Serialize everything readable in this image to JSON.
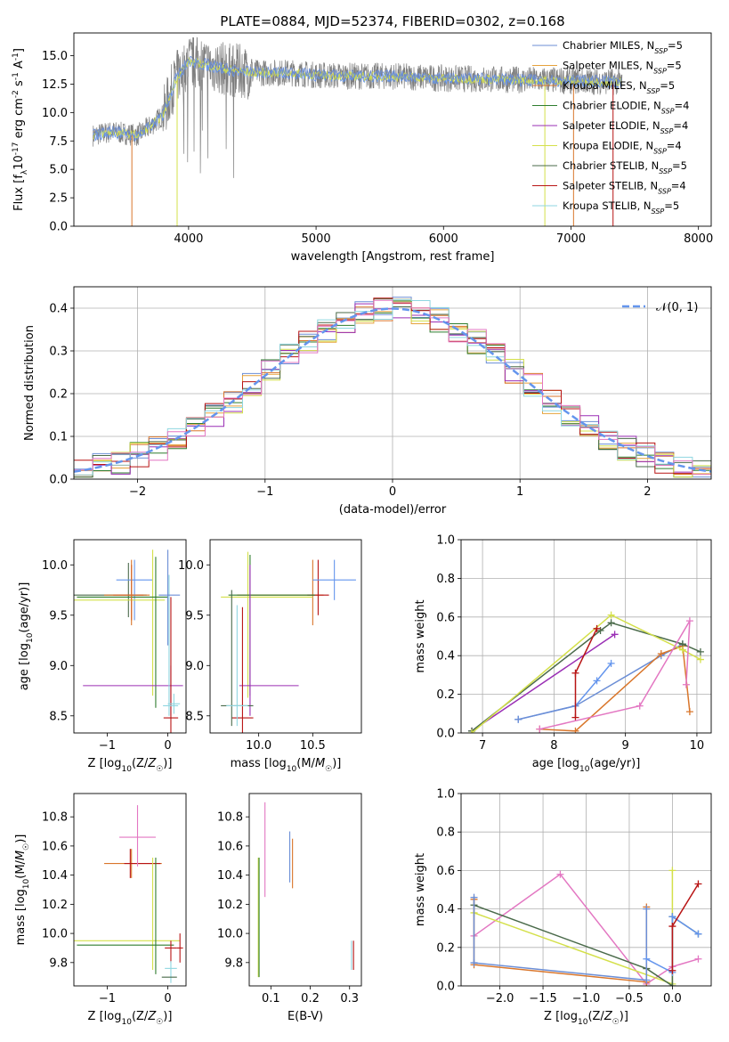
{
  "colors": {
    "series": [
      "#6b8ed6",
      "#e6a23c",
      "#d9762b",
      "#2f7d2f",
      "#9a2fb5",
      "#d4e04a",
      "#4a6a4a",
      "#b81414",
      "#8fd6e0"
    ],
    "normal_curve": "#6495ed",
    "spectrum_data": "#7f7f7f",
    "pink": "#e377c2",
    "grid": "#b0b0b0"
  },
  "chart_data": [
    {
      "id": "spectrum",
      "type": "line",
      "title": "PLATE=0884, MJD=52374, FIBERID=0302, z=0.168",
      "xlabel": "wavelength [Angstrom, rest frame]",
      "ylabel": "Flux [f_λ10^-17 erg cm^-2 s^-1 A^-1]",
      "xlim": [
        3100,
        8100
      ],
      "ylim": [
        0,
        17
      ],
      "xticks": [
        4000,
        5000,
        6000,
        7000,
        8000
      ],
      "yticks": [
        0.0,
        2.5,
        5.0,
        7.5,
        10.0,
        12.5,
        15.0
      ],
      "legend_position": "right",
      "legend": [
        "Chabrier MILES, N_SSP=5",
        "Salpeter MILES, N_SSP=5",
        "Kroupa MILES, N_SSP=5",
        "Chabrier ELODIE, N_SSP=4",
        "Salpeter ELODIE, N_SSP=4",
        "Kroupa ELODIE, N_SSP=4",
        "Chabrier STELIB, N_SSP=5",
        "Salpeter STELIB, N_SSP=4",
        "Kroupa STELIB, N_SSP=5"
      ],
      "continuum": {
        "x": [
          3250,
          3400,
          3600,
          3700,
          3800,
          3900,
          4000,
          4100,
          4300,
          4500,
          4800,
          5000,
          5300,
          5600,
          6000,
          6500,
          7000,
          7400
        ],
        "y": [
          8.0,
          8.3,
          8.0,
          8.8,
          9.8,
          13.0,
          14.5,
          14.3,
          13.8,
          13.5,
          13.5,
          13.3,
          13.2,
          13.2,
          13.0,
          12.9,
          12.8,
          12.7
        ]
      }
    },
    {
      "id": "residuals",
      "type": "histogram",
      "xlabel": "(data-model)/error",
      "ylabel": "Normed distribution",
      "xlim": [
        -2.5,
        2.5
      ],
      "ylim": [
        0,
        0.45
      ],
      "xticks": [
        -2,
        -1,
        0,
        1,
        2
      ],
      "yticks": [
        0.0,
        0.1,
        0.2,
        0.3,
        0.4
      ],
      "legend": [
        "𝒩(0, 1)"
      ],
      "legend_position": "top-right",
      "grid": true
    },
    {
      "id": "age_vs_Z",
      "type": "errorbar",
      "xlabel": "Z [log10(Z/Z☉)]",
      "ylabel": "age  [log10(age/yr)]",
      "xlim": [
        -1.55,
        0.3
      ],
      "ylim": [
        8.33,
        10.25
      ],
      "xticks": [
        -1,
        0
      ],
      "yticks": [
        8.5,
        9.0,
        9.5,
        10.0
      ],
      "points": [
        {
          "x": -0.65,
          "y": 9.7,
          "xerr": [
            0.9,
            0.3
          ],
          "yerr": [
            0.22,
            0.32
          ],
          "c": 6
        },
        {
          "x": -0.6,
          "y": 9.7,
          "xerr": [
            0.3,
            0.2
          ],
          "yerr": [
            0.25,
            0.3
          ],
          "c": 7
        },
        {
          "x": -0.55,
          "y": 9.85,
          "xerr": [
            0.3,
            0.3
          ],
          "yerr": [
            0.4,
            0.2
          ],
          "c": 9
        },
        {
          "x": -0.25,
          "y": 9.65,
          "xerr": [
            1.3,
            0.2
          ],
          "yerr": [
            0.95,
            0.5
          ],
          "c": 5
        },
        {
          "x": -0.2,
          "y": 9.68,
          "xerr": [
            1.3,
            0.2
          ],
          "yerr": [
            1.1,
            0.4
          ],
          "c": 3
        },
        {
          "x": 0.05,
          "y": 8.8,
          "xerr": [
            1.45,
            0.2
          ],
          "yerr": [
            0.3,
            0.2
          ],
          "c": 4
        },
        {
          "x": 0.05,
          "y": 8.48,
          "xerr": [
            0.12,
            0.12
          ],
          "yerr": [
            0.4,
            1.2
          ],
          "c": 7
        },
        {
          "x": 0.02,
          "y": 8.6,
          "xerr": [
            0.1,
            0.15
          ],
          "yerr": [
            0.1,
            1.3
          ],
          "c": 8
        },
        {
          "x": 0.1,
          "y": 8.62,
          "xerr": [
            0.1,
            0.1
          ],
          "yerr": [
            0.1,
            0.1
          ],
          "c": 8
        },
        {
          "x": 0.0,
          "y": 9.7,
          "xerr": [
            0.15,
            0.2
          ],
          "yerr": [
            0.5,
            0.45
          ],
          "c": 0
        },
        {
          "x": -0.6,
          "y": 9.7,
          "xerr": [
            0.45,
            0.3
          ],
          "yerr": [
            0.3,
            0.35
          ],
          "c": 2
        }
      ]
    },
    {
      "id": "age_vs_mass",
      "type": "errorbar",
      "xlabel": "mass [log10(M/M☉)]",
      "ylabel": "",
      "xlim": [
        9.55,
        10.95
      ],
      "ylim": [
        8.33,
        10.25
      ],
      "xticks": [
        10.0,
        10.5
      ],
      "yticks": [
        8.5,
        9.0,
        9.5,
        10.0
      ],
      "points": [
        {
          "x": 10.5,
          "y": 9.7,
          "xerr": [
            0.7,
            0.1
          ],
          "yerr": [
            0.3,
            0.35
          ],
          "c": 2
        },
        {
          "x": 10.55,
          "y": 9.7,
          "xerr": [
            0.1,
            0.1
          ],
          "yerr": [
            0.2,
            0.35
          ],
          "c": 7
        },
        {
          "x": 10.7,
          "y": 9.85,
          "xerr": [
            0.2,
            0.2
          ],
          "yerr": [
            0.2,
            0.2
          ],
          "c": 9
        },
        {
          "x": 9.9,
          "y": 9.68,
          "xerr": [
            0.25,
            0.6
          ],
          "yerr": [
            1.0,
            0.45
          ],
          "c": 5
        },
        {
          "x": 9.92,
          "y": 9.7,
          "xerr": [
            0.2,
            0.6
          ],
          "yerr": [
            1.0,
            0.4
          ],
          "c": 3
        },
        {
          "x": 9.92,
          "y": 8.8,
          "xerr": [
            0.1,
            0.45
          ],
          "yerr": [
            0.3,
            1.2
          ],
          "c": 4
        },
        {
          "x": 9.85,
          "y": 8.48,
          "xerr": [
            0.1,
            0.1
          ],
          "yerr": [
            0.3,
            1.1
          ],
          "c": 7
        },
        {
          "x": 9.75,
          "y": 8.6,
          "xerr": [
            0.1,
            0.2
          ],
          "yerr": [
            0.2,
            1.15
          ],
          "c": 6
        },
        {
          "x": 9.8,
          "y": 8.6,
          "xerr": [
            0.1,
            0.1
          ],
          "yerr": [
            0.2,
            1.0
          ],
          "c": 8
        }
      ]
    },
    {
      "id": "mass_weight_vs_age",
      "type": "line",
      "xlabel": "age  [log10(age/yr)]",
      "ylabel": "mass weight",
      "xlim": [
        6.7,
        10.2
      ],
      "ylim": [
        0,
        1.0
      ],
      "xticks": [
        7,
        8,
        9,
        10
      ],
      "yticks": [
        0.0,
        0.2,
        0.4,
        0.6,
        0.8,
        1.0
      ],
      "grid": true,
      "series": [
        {
          "c": 9,
          "x": [
            7.5,
            8.3,
            8.6,
            8.8
          ],
          "y": [
            0.07,
            0.14,
            0.27,
            0.36
          ]
        },
        {
          "c": 0,
          "x": [
            7.5,
            8.3,
            9.5,
            9.8
          ],
          "y": [
            0.07,
            0.14,
            0.4,
            0.46
          ]
        },
        {
          "c": 2,
          "x": [
            7.8,
            8.3,
            9.5,
            9.8,
            9.9
          ],
          "y": [
            0.02,
            0.01,
            0.41,
            0.45,
            0.11
          ]
        },
        {
          "c": 4,
          "x": [
            6.85,
            8.85
          ],
          "y": [
            0.01,
            0.51
          ]
        },
        {
          "c": 6,
          "x": [
            6.85,
            8.65,
            8.8,
            9.8,
            10.05
          ],
          "y": [
            0.01,
            0.53,
            0.57,
            0.46,
            0.42
          ]
        },
        {
          "c": 5,
          "x": [
            6.85,
            8.8,
            9.8,
            10.05
          ],
          "y": [
            0.0,
            0.61,
            0.43,
            0.38
          ]
        },
        {
          "c": 7,
          "x": [
            8.3,
            8.3,
            8.6
          ],
          "y": [
            0.08,
            0.31,
            0.54
          ]
        },
        {
          "c": 10,
          "x": [
            7.8,
            9.2,
            9.9,
            9.85
          ],
          "y": [
            0.02,
            0.14,
            0.58,
            0.25
          ]
        }
      ]
    },
    {
      "id": "mass_vs_Z",
      "type": "errorbar",
      "xlabel": "Z [log10(Z/Z☉)]",
      "ylabel": "mass [log10(M/M☉)]",
      "xlim": [
        -1.55,
        0.3
      ],
      "ylim": [
        9.64,
        10.96
      ],
      "xticks": [
        -1,
        0
      ],
      "yticks": [
        9.8,
        10.0,
        10.2,
        10.4,
        10.6,
        10.8
      ],
      "points": [
        {
          "x": -0.6,
          "y": 10.48,
          "xerr": [
            0.45,
            0.5
          ],
          "yerr": [
            0.1,
            0.1
          ],
          "c": 2
        },
        {
          "x": -0.62,
          "y": 10.48,
          "xerr": [
            0.1,
            0.5
          ],
          "yerr": [
            0.1,
            0.1
          ],
          "c": 7
        },
        {
          "x": -0.5,
          "y": 10.66,
          "xerr": [
            0.3,
            0.3
          ],
          "yerr": [
            0.2,
            0.22
          ],
          "c": 10
        },
        {
          "x": -0.25,
          "y": 9.95,
          "xerr": [
            1.3,
            0.45
          ],
          "yerr": [
            0.2,
            0.57
          ],
          "c": 5
        },
        {
          "x": -0.2,
          "y": 9.92,
          "xerr": [
            1.3,
            0.3
          ],
          "yerr": [
            0.2,
            0.6
          ],
          "c": 3
        },
        {
          "x": 0.05,
          "y": 9.9,
          "xerr": [
            0.1,
            0.1
          ],
          "yerr": [
            0.1,
            0.05
          ],
          "c": 7
        },
        {
          "x": 0.05,
          "y": 9.76,
          "xerr": [
            0.1,
            0.1
          ],
          "yerr": [
            0.1,
            0.05
          ],
          "c": 8
        },
        {
          "x": 0.05,
          "y": 9.7,
          "xerr": [
            0.15,
            0.1
          ],
          "yerr": [
            0.0,
            0.0
          ],
          "c": 6
        },
        {
          "x": 0.2,
          "y": 9.9,
          "xerr": [
            0.05,
            0.05
          ],
          "yerr": [
            0.1,
            0.1
          ],
          "c": 7
        }
      ]
    },
    {
      "id": "mass_vs_ebv",
      "type": "errorbar",
      "xlabel": "E(B-V)",
      "ylabel": "",
      "xlim": [
        0.045,
        0.33
      ],
      "ylim": [
        9.64,
        10.96
      ],
      "xticks": [
        0.1,
        0.2,
        0.3
      ],
      "yticks": [
        9.8,
        10.0,
        10.2,
        10.4,
        10.6,
        10.8
      ],
      "points": [
        {
          "x": 0.085,
          "y": 10.6,
          "yerr": [
            0.35,
            0.3
          ],
          "c": 10
        },
        {
          "x": 0.068,
          "y": 10.1,
          "yerr": [
            0.4,
            0.42
          ],
          "c": 5
        },
        {
          "x": 0.07,
          "y": 10.1,
          "yerr": [
            0.4,
            0.42
          ],
          "c": 3
        },
        {
          "x": 0.148,
          "y": 10.45,
          "yerr": [
            0.1,
            0.25
          ],
          "c": 0
        },
        {
          "x": 0.155,
          "y": 10.43,
          "yerr": [
            0.12,
            0.22
          ],
          "c": 2
        },
        {
          "x": 0.305,
          "y": 9.85,
          "yerr": [
            0.1,
            0.1
          ],
          "c": 8
        },
        {
          "x": 0.31,
          "y": 9.85,
          "yerr": [
            0.1,
            0.1
          ],
          "c": 7
        }
      ]
    },
    {
      "id": "mass_weight_vs_Z",
      "type": "line",
      "xlabel": "Z [log10(Z/Z☉)]",
      "ylabel": "mass weight",
      "xlim": [
        -2.45,
        0.45
      ],
      "ylim": [
        0,
        1.0
      ],
      "xticks": [
        -2.0,
        -1.5,
        -1.0,
        -0.5,
        0.0
      ],
      "yticks": [
        0.0,
        0.2,
        0.4,
        0.6,
        0.8,
        1.0
      ],
      "grid": true,
      "series": [
        {
          "c": 10,
          "x": [
            -2.3,
            -1.3,
            -0.3,
            0.0,
            0.3
          ],
          "y": [
            0.26,
            0.58,
            0.01,
            0.1,
            0.14
          ]
        },
        {
          "c": 5,
          "x": [
            -2.3,
            0.0,
            0.0
          ],
          "y": [
            0.38,
            0.01,
            0.6
          ]
        },
        {
          "c": 6,
          "x": [
            -2.3,
            -0.3,
            0.0,
            0.0,
            0.3
          ],
          "y": [
            0.42,
            0.09,
            0.0,
            0.36,
            0.27
          ]
        },
        {
          "c": 2,
          "x": [
            -2.3,
            -2.3,
            -0.3,
            -0.3
          ],
          "y": [
            0.45,
            0.11,
            0.02,
            0.41
          ]
        },
        {
          "c": 0,
          "x": [
            -2.3,
            -2.3,
            -0.3,
            -0.3
          ],
          "y": [
            0.46,
            0.12,
            0.03,
            0.4
          ]
        },
        {
          "c": 9,
          "x": [
            -0.3,
            0.0,
            0.0,
            0.3
          ],
          "y": [
            0.14,
            0.07,
            0.36,
            0.27
          ]
        },
        {
          "c": 7,
          "x": [
            0.0,
            0.0,
            0.3
          ],
          "y": [
            0.08,
            0.31,
            0.53
          ]
        }
      ]
    }
  ]
}
